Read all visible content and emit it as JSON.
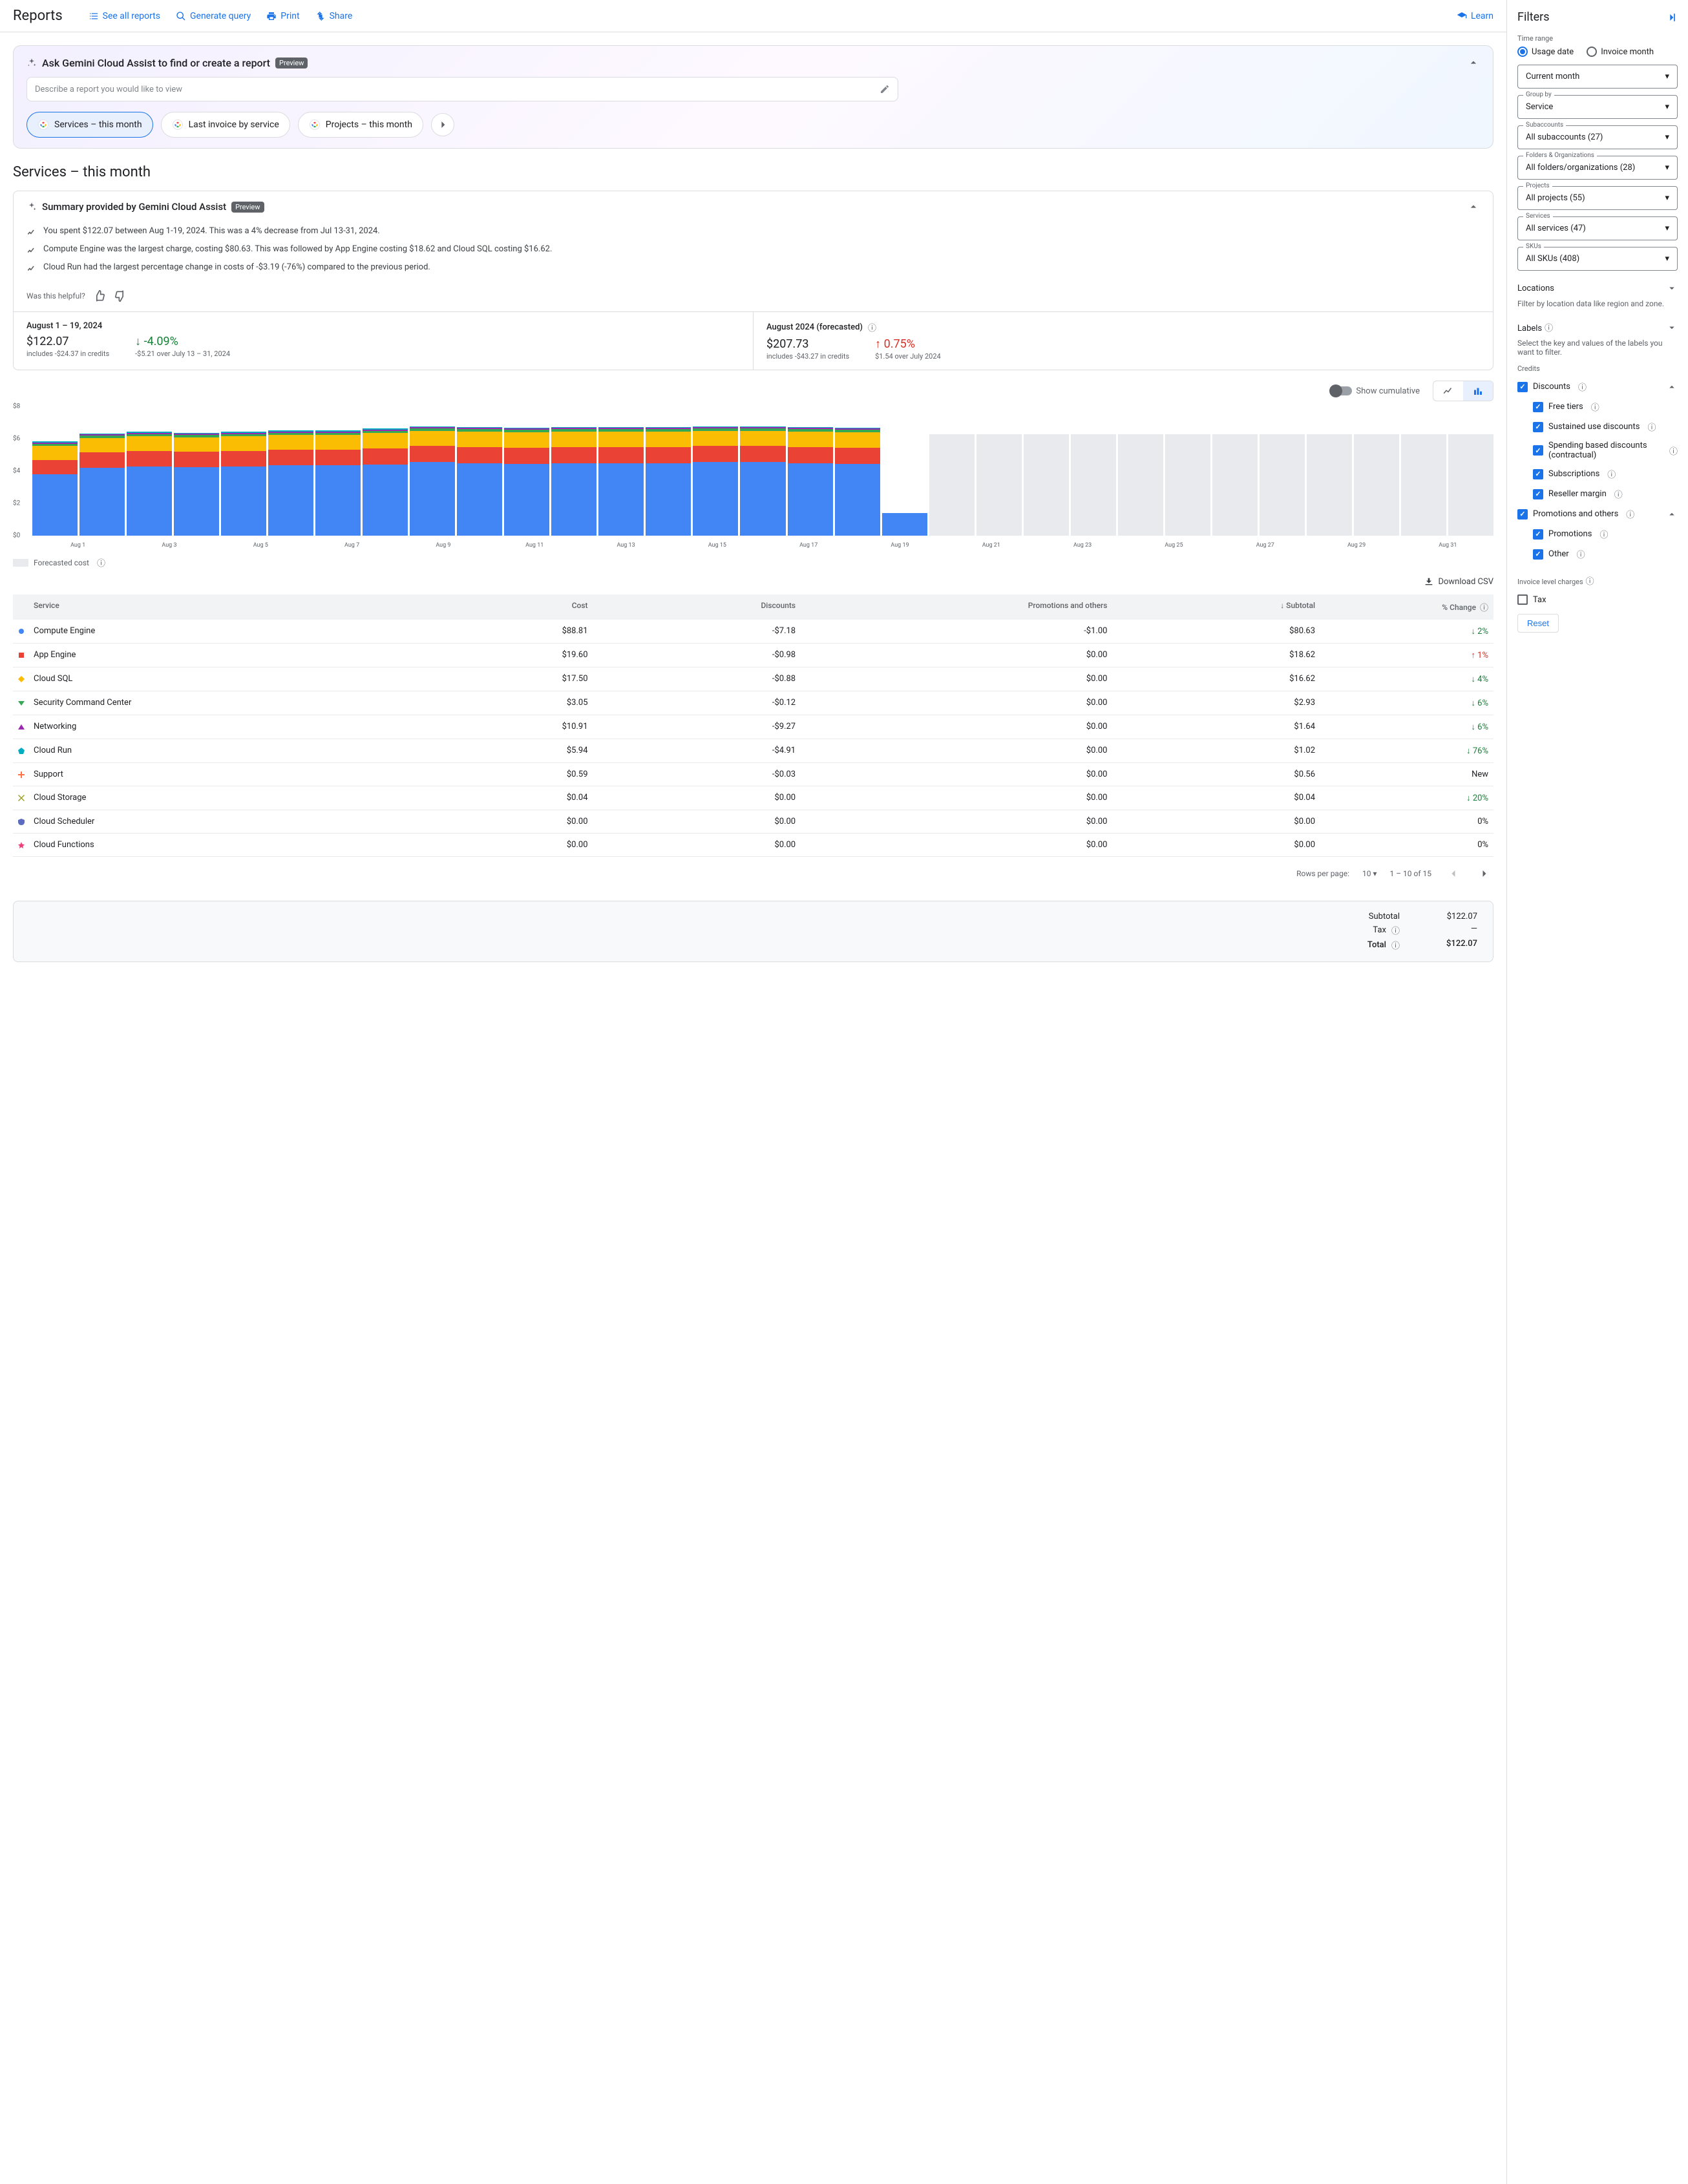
{
  "header": {
    "title": "Reports",
    "links": {
      "see_all": "See all reports",
      "generate": "Generate query",
      "print": "Print",
      "share": "Share",
      "learn": "Learn"
    }
  },
  "gemini": {
    "title": "Ask Gemini Cloud Assist to find or create a report",
    "preview": "Preview",
    "placeholder": "Describe a report you would like to view",
    "chips": [
      "Services – this month",
      "Last invoice by service",
      "Projects – this month"
    ]
  },
  "page_title": "Services – this month",
  "summary": {
    "title": "Summary provided by Gemini Cloud Assist",
    "preview": "Preview",
    "items": [
      "You spent $122.07 between Aug 1-19, 2024. This was a 4% decrease from Jul 13-31, 2024.",
      "Compute Engine was the largest charge, costing $80.63. This was followed by App Engine costing $18.62 and Cloud SQL costing $16.62.",
      "Cloud Run had the largest percentage change in costs of -$3.19 (-76%) compared to the previous period."
    ],
    "helpful": "Was this helpful?"
  },
  "stats": {
    "left": {
      "label": "August 1 – 19, 2024",
      "value": "$122.07",
      "sub": "includes -$24.37 in credits",
      "delta": "-4.09%",
      "delta_sub": "-$5.21 over July 13 – 31, 2024"
    },
    "right": {
      "label": "August 2024 (forecasted)",
      "value": "$207.73",
      "sub": "includes -$43.27 in credits",
      "delta": "0.75%",
      "delta_sub": "$1.54 over July 2024"
    }
  },
  "chart": {
    "show_cumulative": "Show cumulative",
    "y_max": 8,
    "y_ticks": [
      "$8",
      "$6",
      "$4",
      "$2",
      "$0"
    ],
    "x_labels": [
      "Aug 1",
      "Aug 3",
      "Aug 5",
      "Aug 7",
      "Aug 9",
      "Aug 11",
      "Aug 13",
      "Aug 15",
      "Aug 17",
      "Aug 19",
      "Aug 21",
      "Aug 23",
      "Aug 25",
      "Aug 27",
      "Aug 29",
      "Aug 31"
    ],
    "colors": {
      "compute": "#4285f4",
      "appengine": "#ea4335",
      "cloudsql": "#fbbc04",
      "security": "#34a853",
      "networking": "#9c27b0",
      "forecast": "#e8eaed"
    },
    "days": [
      {
        "compute": 3.8,
        "appengine": 0.9,
        "cloudsql": 0.85,
        "security": 0.15,
        "networking": 0.08,
        "other": 0.05
      },
      {
        "compute": 4.2,
        "appengine": 0.95,
        "cloudsql": 0.9,
        "security": 0.15,
        "networking": 0.08,
        "other": 0.05
      },
      {
        "compute": 4.3,
        "appengine": 0.95,
        "cloudsql": 0.9,
        "security": 0.15,
        "networking": 0.08,
        "other": 0.05
      },
      {
        "compute": 4.25,
        "appengine": 0.95,
        "cloudsql": 0.9,
        "security": 0.15,
        "networking": 0.08,
        "other": 0.05
      },
      {
        "compute": 4.3,
        "appengine": 0.95,
        "cloudsql": 0.9,
        "security": 0.15,
        "networking": 0.08,
        "other": 0.05
      },
      {
        "compute": 4.35,
        "appengine": 0.98,
        "cloudsql": 0.9,
        "security": 0.15,
        "networking": 0.08,
        "other": 0.05
      },
      {
        "compute": 4.35,
        "appengine": 0.98,
        "cloudsql": 0.9,
        "security": 0.15,
        "networking": 0.08,
        "other": 0.05
      },
      {
        "compute": 4.4,
        "appengine": 1.0,
        "cloudsql": 0.95,
        "security": 0.15,
        "networking": 0.08,
        "other": 0.05
      },
      {
        "compute": 4.55,
        "appengine": 1.0,
        "cloudsql": 0.95,
        "security": 0.15,
        "networking": 0.08,
        "other": 0.05
      },
      {
        "compute": 4.5,
        "appengine": 1.0,
        "cloudsql": 0.95,
        "security": 0.15,
        "networking": 0.08,
        "other": 0.05
      },
      {
        "compute": 4.45,
        "appengine": 1.0,
        "cloudsql": 0.95,
        "security": 0.15,
        "networking": 0.08,
        "other": 0.05
      },
      {
        "compute": 4.5,
        "appengine": 1.0,
        "cloudsql": 0.95,
        "security": 0.15,
        "networking": 0.08,
        "other": 0.05
      },
      {
        "compute": 4.5,
        "appengine": 1.0,
        "cloudsql": 0.95,
        "security": 0.15,
        "networking": 0.08,
        "other": 0.05
      },
      {
        "compute": 4.5,
        "appengine": 1.0,
        "cloudsql": 0.95,
        "security": 0.15,
        "networking": 0.08,
        "other": 0.05
      },
      {
        "compute": 4.55,
        "appengine": 1.0,
        "cloudsql": 0.95,
        "security": 0.15,
        "networking": 0.08,
        "other": 0.05
      },
      {
        "compute": 4.55,
        "appengine": 1.0,
        "cloudsql": 0.95,
        "security": 0.15,
        "networking": 0.08,
        "other": 0.05
      },
      {
        "compute": 4.5,
        "appengine": 1.0,
        "cloudsql": 0.95,
        "security": 0.15,
        "networking": 0.08,
        "other": 0.05
      },
      {
        "compute": 4.45,
        "appengine": 1.0,
        "cloudsql": 0.95,
        "security": 0.15,
        "networking": 0.08,
        "other": 0.05
      },
      {
        "compute": 1.4,
        "appengine": 0,
        "cloudsql": 0,
        "security": 0,
        "networking": 0,
        "other": 0
      }
    ],
    "forecast_days": 12,
    "forecast_height": 6.3,
    "forecast_label": "Forecasted cost"
  },
  "download": "Download CSV",
  "table": {
    "headers": {
      "service": "Service",
      "cost": "Cost",
      "discounts": "Discounts",
      "promotions": "Promotions and others",
      "subtotal": "Subtotal",
      "change": "% Change"
    },
    "rows": [
      {
        "marker": "#4285f4",
        "shape": "circle",
        "service": "Compute Engine",
        "cost": "$88.81",
        "discounts": "-$7.18",
        "promotions": "-$1.00",
        "subtotal": "$80.63",
        "change": "2%",
        "dir": "down"
      },
      {
        "marker": "#ea4335",
        "shape": "square",
        "service": "App Engine",
        "cost": "$19.60",
        "discounts": "-$0.98",
        "promotions": "$0.00",
        "subtotal": "$18.62",
        "change": "1%",
        "dir": "up"
      },
      {
        "marker": "#fbbc04",
        "shape": "diamond",
        "service": "Cloud SQL",
        "cost": "$17.50",
        "discounts": "-$0.88",
        "promotions": "$0.00",
        "subtotal": "$16.62",
        "change": "4%",
        "dir": "down"
      },
      {
        "marker": "#34a853",
        "shape": "triangle-down",
        "service": "Security Command Center",
        "cost": "$3.05",
        "discounts": "-$0.12",
        "promotions": "$0.00",
        "subtotal": "$2.93",
        "change": "6%",
        "dir": "down"
      },
      {
        "marker": "#9c27b0",
        "shape": "triangle-up",
        "service": "Networking",
        "cost": "$10.91",
        "discounts": "-$9.27",
        "promotions": "$0.00",
        "subtotal": "$1.64",
        "change": "6%",
        "dir": "down"
      },
      {
        "marker": "#00acc1",
        "shape": "pentagon",
        "service": "Cloud Run",
        "cost": "$5.94",
        "discounts": "-$4.91",
        "promotions": "$0.00",
        "subtotal": "$1.02",
        "change": "76%",
        "dir": "down"
      },
      {
        "marker": "#ff7043",
        "shape": "plus",
        "service": "Support",
        "cost": "$0.59",
        "discounts": "-$0.03",
        "promotions": "$0.00",
        "subtotal": "$0.56",
        "change": "New",
        "dir": "none"
      },
      {
        "marker": "#9e9d24",
        "shape": "cross",
        "service": "Cloud Storage",
        "cost": "$0.04",
        "discounts": "$0.00",
        "promotions": "$0.00",
        "subtotal": "$0.04",
        "change": "20%",
        "dir": "down"
      },
      {
        "marker": "#5c6bc0",
        "shape": "shield",
        "service": "Cloud Scheduler",
        "cost": "$0.00",
        "discounts": "$0.00",
        "promotions": "$0.00",
        "subtotal": "$0.00",
        "change": "0%",
        "dir": "none"
      },
      {
        "marker": "#ec407a",
        "shape": "star",
        "service": "Cloud Functions",
        "cost": "$0.00",
        "discounts": "$0.00",
        "promotions": "$0.00",
        "subtotal": "$0.00",
        "change": "0%",
        "dir": "none"
      }
    ]
  },
  "pagination": {
    "rows_label": "Rows per page:",
    "rows_value": "10",
    "range": "1 – 10 of 15"
  },
  "totals": {
    "subtotal_label": "Subtotal",
    "subtotal": "$122.07",
    "tax_label": "Tax",
    "tax": "—",
    "total_label": "Total",
    "total": "$122.07"
  },
  "filters": {
    "title": "Filters",
    "time_range": "Time range",
    "usage_date": "Usage date",
    "invoice_month": "Invoice month",
    "current_month": "Current month",
    "group_by_label": "Group by",
    "group_by": "Service",
    "subaccounts_label": "Subaccounts",
    "subaccounts": "All subaccounts (27)",
    "folders_label": "Folders & Organizations",
    "folders": "All folders/organizations (28)",
    "projects_label": "Projects",
    "projects": "All projects (55)",
    "services_label": "Services",
    "services": "All services (47)",
    "skus_label": "SKUs",
    "skus": "All SKUs (408)",
    "locations": "Locations",
    "locations_desc": "Filter by location data like region and zone.",
    "labels": "Labels",
    "labels_desc": "Select the key and values of the labels you want to filter.",
    "credits": "Credits",
    "discounts": "Discounts",
    "free_tiers": "Free tiers",
    "sustained": "Sustained use discounts",
    "spending": "Spending based discounts (contractual)",
    "subscriptions": "Subscriptions",
    "reseller": "Reseller margin",
    "promotions_others": "Promotions and others",
    "promotions": "Promotions",
    "other": "Other",
    "invoice_charges": "Invoice level charges",
    "tax": "Tax",
    "reset": "Reset"
  }
}
